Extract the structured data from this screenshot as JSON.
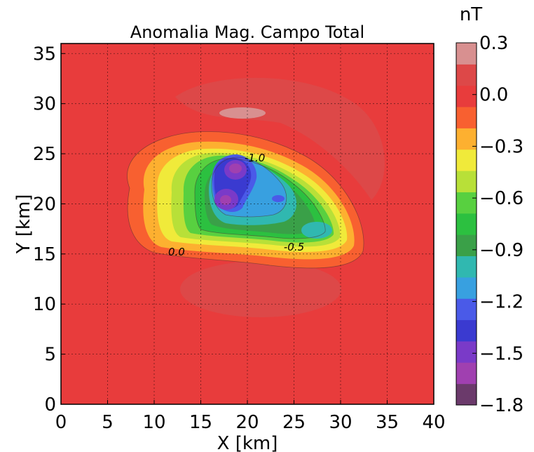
{
  "chart_data": {
    "type": "heatmap",
    "subtype": "filled-contour",
    "title": "Anomalia Mag. Campo Total",
    "xlabel": "X [km]",
    "ylabel": "Y [km]",
    "xlim": [
      0,
      40
    ],
    "ylim": [
      0,
      36
    ],
    "xticks": [
      0,
      5,
      10,
      15,
      20,
      25,
      30,
      35,
      40
    ],
    "yticks": [
      0,
      5,
      10,
      15,
      20,
      25,
      30,
      35
    ],
    "grid": true,
    "colorbar": {
      "unit_label": "nT",
      "ticks": [
        "0.3",
        "0.0",
        "−0.3",
        "−0.6",
        "−0.9",
        "−1.2",
        "−1.5",
        "−1.8"
      ],
      "levels": [
        -1.8,
        -1.65,
        -1.5,
        -1.35,
        -1.2,
        -1.05,
        -0.9,
        -0.75,
        -0.6,
        -0.45,
        -0.3,
        -0.15,
        0.0,
        0.15,
        0.3
      ],
      "colors": [
        "#6b3a6b",
        "#a040b0",
        "#7a3ac8",
        "#3a3ad0",
        "#4a5ae8",
        "#38a0e0",
        "#30b8b0",
        "#3aa048",
        "#2cc040",
        "#58d040",
        "#b8e038",
        "#f0ea3a",
        "#fdb030",
        "#f86030",
        "#e83c3c",
        "#dd4848",
        "#d89090"
      ]
    },
    "contour_labels": [
      {
        "text": "-1.0",
        "x": 20.8,
        "y": 24.6
      },
      {
        "text": "-0.5",
        "x": 25.0,
        "y": 15.7
      },
      {
        "text": "0.0",
        "x": 12.4,
        "y": 15.2
      }
    ],
    "anomaly_features": [
      {
        "kind": "minimum",
        "x": 18.0,
        "y": 20.8,
        "value": -1.7
      },
      {
        "kind": "minimum",
        "x": 18.7,
        "y": 24.0,
        "value": -1.65
      },
      {
        "kind": "maximum",
        "x": 19.5,
        "y": 29.5,
        "value": 0.25
      }
    ]
  }
}
